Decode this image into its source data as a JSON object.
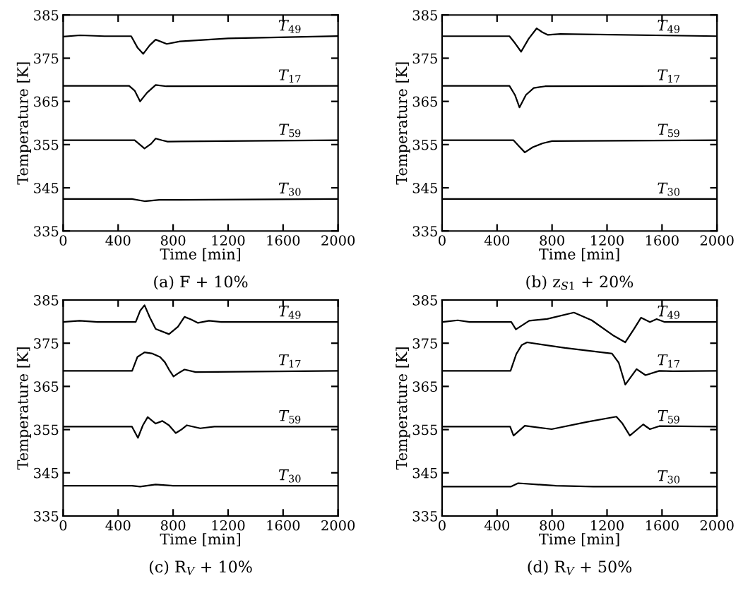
{
  "chart_data": [
    {
      "type": "line",
      "title": "(a) F + 10%",
      "xlabel": "Time [min]",
      "ylabel": "Temperature [K]",
      "xlim": [
        0,
        2000
      ],
      "ylim": [
        335,
        385
      ],
      "xticks": [
        0,
        400,
        800,
        1200,
        1600,
        2000
      ],
      "yticks": [
        335,
        345,
        355,
        365,
        375,
        385
      ],
      "grid": false,
      "series": [
        {
          "name": "T$_{49}$",
          "color": "#000000",
          "x": [
            0,
            123,
            300,
            495,
            540,
            582,
            630,
            673,
            754,
            850,
            1200,
            2000
          ],
          "values": [
            380.0,
            380.3,
            380.1,
            380.1,
            377.5,
            376.0,
            378.0,
            379.3,
            378.3,
            378.9,
            379.6,
            380.1
          ]
        },
        {
          "name": "T$_{17}$",
          "color": "#000000",
          "x": [
            0,
            480,
            520,
            560,
            610,
            673,
            750,
            2000
          ],
          "values": [
            368.6,
            368.6,
            367.5,
            365.0,
            367.0,
            368.8,
            368.5,
            368.6
          ]
        },
        {
          "name": "T$_{59}$",
          "color": "#000000",
          "x": [
            0,
            520,
            592,
            640,
            673,
            720,
            760,
            2000
          ],
          "values": [
            356.0,
            356.0,
            354.1,
            355.2,
            356.4,
            356.0,
            355.7,
            356.0
          ]
        },
        {
          "name": "T$_{30}$",
          "color": "#000000",
          "x": [
            0,
            500,
            592,
            700,
            2000
          ],
          "values": [
            342.4,
            342.4,
            341.9,
            342.2,
            342.4
          ]
        }
      ]
    },
    {
      "type": "line",
      "title": "(b) z$_{S1}$ + 20%",
      "xlabel": "Time [min]",
      "ylabel": "Temperature [K]",
      "xlim": [
        0,
        2000
      ],
      "ylim": [
        335,
        385
      ],
      "xticks": [
        0,
        400,
        800,
        1200,
        1600,
        2000
      ],
      "yticks": [
        335,
        345,
        355,
        365,
        375,
        385
      ],
      "grid": false,
      "series": [
        {
          "name": "T$_{49}$",
          "color": "#000000",
          "x": [
            0,
            490,
            530,
            575,
            630,
            688,
            730,
            770,
            860,
            2000
          ],
          "values": [
            380.1,
            380.1,
            378.5,
            376.5,
            379.5,
            381.9,
            381.0,
            380.4,
            380.6,
            380.1
          ]
        },
        {
          "name": "T$_{17}$",
          "color": "#000000",
          "x": [
            0,
            490,
            530,
            563,
            610,
            667,
            750,
            2000
          ],
          "values": [
            368.6,
            368.6,
            366.5,
            363.6,
            366.5,
            368.1,
            368.5,
            368.6
          ]
        },
        {
          "name": "T$_{59}$",
          "color": "#000000",
          "x": [
            0,
            520,
            560,
            602,
            660,
            732,
            800,
            2000
          ],
          "values": [
            356.0,
            356.0,
            354.6,
            353.2,
            354.4,
            355.3,
            355.8,
            356.0
          ]
        },
        {
          "name": "T$_{30}$",
          "color": "#000000",
          "x": [
            0,
            2000
          ],
          "values": [
            342.4,
            342.4
          ]
        }
      ]
    },
    {
      "type": "line",
      "title": "(c) R$_{V}$ + 10%",
      "xlabel": "Time [min]",
      "ylabel": "Temperature [K]",
      "xlim": [
        0,
        2000
      ],
      "ylim": [
        335,
        385
      ],
      "xticks": [
        0,
        400,
        800,
        1200,
        1600,
        2000
      ],
      "yticks": [
        335,
        345,
        355,
        365,
        375,
        385
      ],
      "grid": false,
      "series": [
        {
          "name": "T$_{49}$",
          "color": "#000000",
          "x": [
            0,
            120,
            250,
            528,
            560,
            592,
            630,
            673,
            770,
            835,
            883,
            930,
            981,
            1061,
            1150,
            2000
          ],
          "values": [
            379.9,
            380.2,
            379.9,
            379.9,
            382.5,
            383.8,
            381.0,
            378.3,
            377.1,
            378.8,
            381.1,
            380.5,
            379.7,
            380.2,
            379.9,
            379.9
          ]
        },
        {
          "name": "T$_{17}$",
          "color": "#000000",
          "x": [
            0,
            502,
            540,
            592,
            650,
            705,
            740,
            770,
            803,
            840,
            883,
            964,
            2000
          ],
          "values": [
            368.6,
            368.6,
            371.8,
            372.9,
            372.6,
            371.8,
            370.6,
            368.9,
            367.3,
            368.1,
            368.9,
            368.3,
            368.6
          ]
        },
        {
          "name": "T$_{59}$",
          "color": "#000000",
          "x": [
            0,
            500,
            544,
            580,
            615,
            673,
            722,
            770,
            819,
            860,
            900,
            997,
            1100,
            2000
          ],
          "values": [
            355.7,
            355.7,
            353.1,
            356.0,
            357.9,
            356.4,
            357.0,
            356.0,
            354.2,
            355.0,
            356.0,
            355.3,
            355.7,
            355.7
          ]
        },
        {
          "name": "T$_{30}$",
          "color": "#000000",
          "x": [
            0,
            500,
            560,
            673,
            800,
            2000
          ],
          "values": [
            342.0,
            342.0,
            341.8,
            342.3,
            342.0,
            342.0
          ]
        }
      ]
    },
    {
      "type": "line",
      "title": "(d) R$_{V}$ + 50%",
      "xlabel": "Time [min]",
      "ylabel": "Temperature [K]",
      "xlim": [
        0,
        2000
      ],
      "ylim": [
        335,
        385
      ],
      "xticks": [
        0,
        400,
        800,
        1200,
        1600,
        2000
      ],
      "yticks": [
        335,
        345,
        355,
        365,
        375,
        385
      ],
      "grid": false,
      "series": [
        {
          "name": "T$_{49}$",
          "color": "#000000",
          "x": [
            0,
            114,
            200,
            504,
            537,
            634,
            764,
            959,
            1089,
            1250,
            1333,
            1400,
            1447,
            1512,
            1561,
            1620,
            2000
          ],
          "values": [
            379.9,
            380.3,
            379.9,
            379.9,
            378.2,
            380.2,
            380.6,
            382.1,
            380.3,
            376.7,
            375.2,
            378.5,
            380.9,
            379.9,
            380.6,
            379.9,
            379.9
          ]
        },
        {
          "name": "T$_{17}$",
          "color": "#000000",
          "x": [
            0,
            498,
            540,
            580,
            618,
            894,
            1236,
            1285,
            1333,
            1415,
            1480,
            1580,
            1680,
            2000
          ],
          "values": [
            368.6,
            368.6,
            372.5,
            374.6,
            375.2,
            373.9,
            372.6,
            370.5,
            365.4,
            369.0,
            367.6,
            368.6,
            368.5,
            368.6
          ]
        },
        {
          "name": "T$_{59}$",
          "color": "#000000",
          "x": [
            0,
            495,
            520,
            602,
            797,
            1057,
            1268,
            1310,
            1366,
            1463,
            1512,
            1580,
            2000
          ],
          "values": [
            355.7,
            355.7,
            353.6,
            355.9,
            355.1,
            356.8,
            358.0,
            356.5,
            353.6,
            356.2,
            355.1,
            355.8,
            355.7
          ]
        },
        {
          "name": "T$_{30}$",
          "color": "#000000",
          "x": [
            0,
            500,
            553,
            829,
            1100,
            2000
          ],
          "values": [
            341.8,
            341.8,
            342.6,
            342.0,
            341.8,
            341.8
          ]
        }
      ]
    }
  ]
}
